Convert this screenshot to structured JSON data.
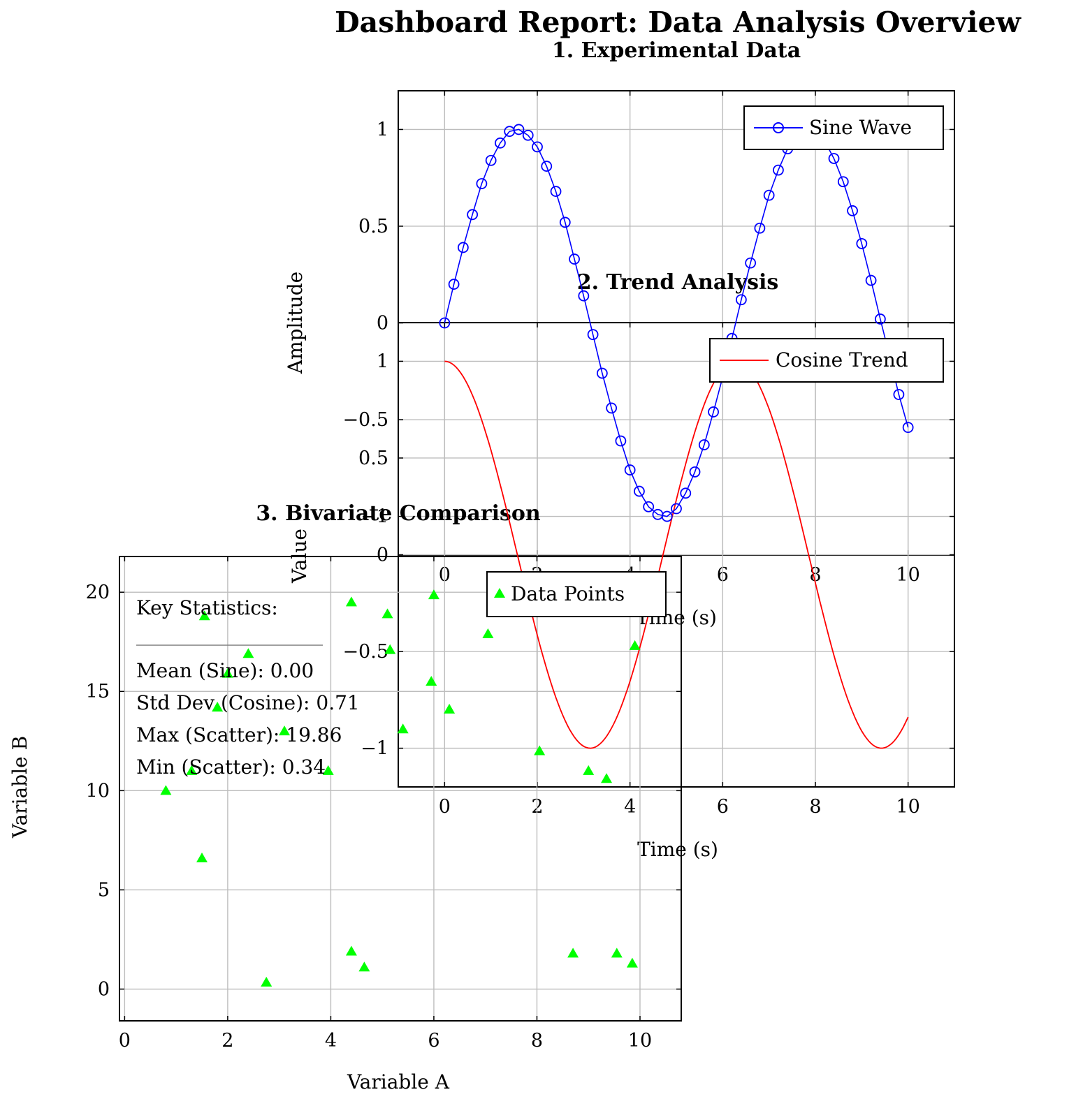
{
  "page_title": "Dashboard Report: Data Analysis Overview",
  "chart_data": [
    {
      "type": "line",
      "title": "1. Experimental Data",
      "xlabel": "Time (s)",
      "ylabel": "Amplitude",
      "xlim": [
        -1,
        11
      ],
      "ylim": [
        -1.2,
        1.2
      ],
      "xticks": [
        0,
        2,
        4,
        6,
        8,
        10
      ],
      "yticks": [
        -1,
        -0.5,
        0,
        0.5,
        1
      ],
      "grid": true,
      "legend_position": "top-right",
      "series": [
        {
          "name": "Sine Wave",
          "color": "#0000ff",
          "marker": "circle",
          "x": [
            0,
            0.2,
            0.4,
            0.6,
            0.8,
            1.0,
            1.2,
            1.4,
            1.6,
            1.8,
            2.0,
            2.2,
            2.4,
            2.6,
            2.8,
            3.0,
            3.2,
            3.4,
            3.6,
            3.8,
            4.0,
            4.2,
            4.4,
            4.6,
            4.8,
            5.0,
            5.2,
            5.4,
            5.6,
            5.8,
            6.0,
            6.2,
            6.4,
            6.6,
            6.8,
            7.0,
            7.2,
            7.4,
            7.6,
            7.8,
            8.0,
            8.2,
            8.4,
            8.6,
            8.8,
            9.0,
            9.2,
            9.4,
            9.6,
            9.8,
            10.0
          ],
          "y": [
            0,
            0.2,
            0.39,
            0.56,
            0.72,
            0.84,
            0.93,
            0.99,
            1.0,
            0.97,
            0.91,
            0.81,
            0.68,
            0.52,
            0.33,
            0.14,
            -0.06,
            -0.26,
            -0.44,
            -0.61,
            -0.76,
            -0.87,
            -0.95,
            -0.99,
            -1.0,
            -0.96,
            -0.88,
            -0.77,
            -0.63,
            -0.46,
            -0.28,
            -0.08,
            0.12,
            0.31,
            0.49,
            0.66,
            0.79,
            0.9,
            0.97,
            1.0,
            0.99,
            0.94,
            0.85,
            0.73,
            0.58,
            0.41,
            0.22,
            0.02,
            -0.17,
            -0.37,
            -0.54
          ]
        }
      ]
    },
    {
      "type": "line",
      "title": "2. Trend Analysis",
      "xlabel": "Time (s)",
      "ylabel": "Value",
      "xlim": [
        -1,
        11
      ],
      "ylim": [
        -1.2,
        1.2
      ],
      "xticks": [
        0,
        2,
        4,
        6,
        8,
        10
      ],
      "yticks": [
        -1,
        -0.5,
        0,
        0.5,
        1
      ],
      "grid": true,
      "legend_position": "top-right",
      "series": [
        {
          "name": "Cosine Trend",
          "color": "#ff0000",
          "function": "cos",
          "x_range": [
            0,
            10
          ]
        }
      ]
    },
    {
      "type": "scatter",
      "title": "3. Bivariate Comparison",
      "xlabel": "Variable A",
      "ylabel": "Variable B",
      "xlim": [
        -0.1,
        10.8
      ],
      "ylim": [
        -1.6,
        21.8
      ],
      "xticks": [
        0,
        2,
        4,
        6,
        8,
        10
      ],
      "yticks": [
        0,
        5,
        10,
        15,
        20
      ],
      "grid": true,
      "legend_position": "top-right",
      "series": [
        {
          "name": "Data Points",
          "color": "#00ff00",
          "marker": "triangle",
          "x": [
            0.8,
            1.3,
            1.55,
            1.5,
            1.8,
            2.0,
            2.4,
            2.75,
            3.1,
            3.95,
            4.4,
            4.4,
            4.65,
            5.1,
            5.15,
            5.4,
            5.95,
            6.0,
            6.3,
            7.05,
            8.05,
            8.7,
            9.0,
            9.35,
            9.55,
            9.9,
            9.85
          ],
          "y": [
            10.0,
            11.0,
            18.8,
            6.6,
            14.2,
            15.9,
            16.9,
            0.34,
            13.0,
            11.0,
            19.5,
            1.9,
            1.1,
            18.9,
            17.1,
            13.1,
            15.5,
            19.86,
            14.1,
            17.9,
            12.0,
            1.8,
            11.0,
            10.6,
            1.8,
            17.3,
            1.3
          ]
        }
      ]
    }
  ],
  "stats": {
    "heading": "Key Statistics:",
    "lines": [
      "Mean (Sine): 0.00",
      "Std Dev (Cosine): 0.71",
      "Max (Scatter): 19.86",
      "Min (Scatter): 0.34"
    ]
  }
}
